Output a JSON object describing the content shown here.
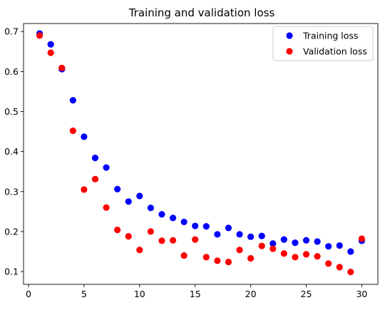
{
  "chart_data": {
    "type": "scatter",
    "title": "Training and validation loss",
    "xlabel": "",
    "ylabel": "",
    "xlim": [
      -0.45,
      31.45
    ],
    "ylim": [
      0.068,
      0.72
    ],
    "x_ticks": [
      0,
      5,
      10,
      15,
      20,
      25,
      30
    ],
    "y_ticks": [
      0.1,
      0.2,
      0.3,
      0.4,
      0.5,
      0.6,
      0.7
    ],
    "grid": false,
    "legend_position": "top-right",
    "series": [
      {
        "name": "Training loss",
        "color": "#0000ff",
        "marker": "circle",
        "x": [
          1,
          2,
          3,
          4,
          5,
          6,
          7,
          8,
          9,
          10,
          11,
          12,
          13,
          14,
          15,
          16,
          17,
          18,
          19,
          20,
          21,
          22,
          23,
          24,
          25,
          26,
          27,
          28,
          29,
          30
        ],
        "y": [
          0.695,
          0.668,
          0.606,
          0.528,
          0.437,
          0.384,
          0.36,
          0.306,
          0.275,
          0.289,
          0.259,
          0.243,
          0.234,
          0.224,
          0.214,
          0.213,
          0.193,
          0.209,
          0.193,
          0.187,
          0.189,
          0.17,
          0.18,
          0.172,
          0.178,
          0.175,
          0.163,
          0.165,
          0.15,
          0.177
        ]
      },
      {
        "name": "Validation loss",
        "color": "#ff0000",
        "marker": "circle",
        "x": [
          1,
          2,
          3,
          4,
          5,
          6,
          7,
          8,
          9,
          10,
          11,
          12,
          13,
          14,
          15,
          16,
          17,
          18,
          19,
          20,
          21,
          22,
          23,
          24,
          25,
          26,
          27,
          28,
          29,
          30
        ],
        "y": [
          0.69,
          0.647,
          0.609,
          0.452,
          0.305,
          0.331,
          0.26,
          0.204,
          0.188,
          0.154,
          0.2,
          0.177,
          0.178,
          0.14,
          0.18,
          0.136,
          0.127,
          0.124,
          0.154,
          0.133,
          0.164,
          0.157,
          0.145,
          0.136,
          0.143,
          0.138,
          0.12,
          0.111,
          0.099,
          0.182
        ]
      }
    ]
  }
}
